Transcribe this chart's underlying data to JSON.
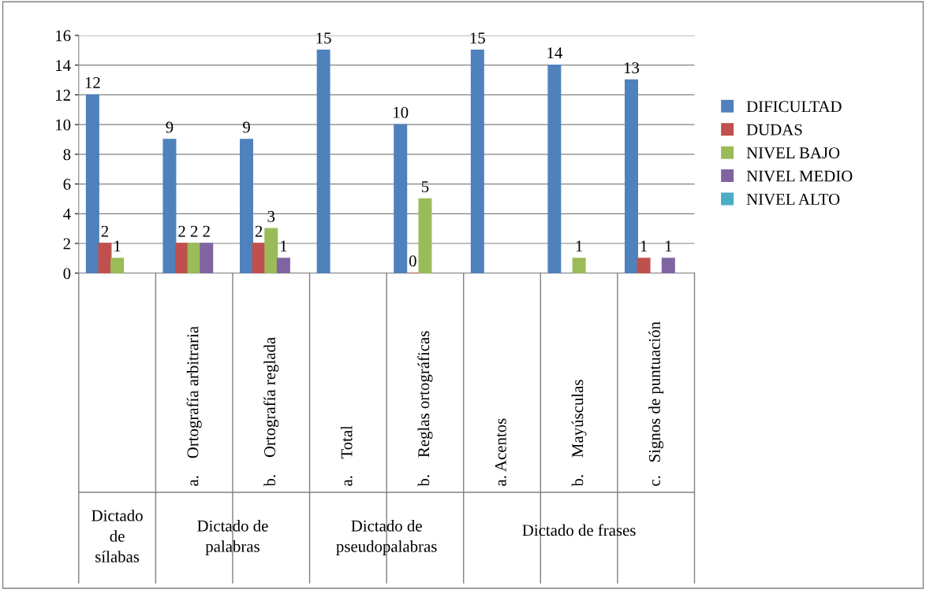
{
  "chart_data": {
    "type": "bar",
    "categories": [
      null,
      "a.    Ortografía arbitraria",
      "b.    Ortografía reglada",
      "a.    Total",
      "b.    Reglas ortográficas",
      "a. Acentos",
      "b.    Mayúsculas",
      "c.   Signos de puntuación"
    ],
    "series": [
      {
        "name": "DIFICULTAD",
        "color": "#4f81bd",
        "values": [
          12,
          9,
          9,
          15,
          10,
          15,
          14,
          13
        ]
      },
      {
        "name": "DUDAS",
        "color": "#c0504d",
        "values": [
          2,
          2,
          2,
          null,
          0,
          null,
          null,
          1
        ]
      },
      {
        "name": "NIVEL BAJO",
        "color": "#9bbb59",
        "values": [
          1,
          2,
          3,
          null,
          5,
          null,
          1,
          null
        ]
      },
      {
        "name": "NIVEL MEDIO",
        "color": "#8064a2",
        "values": [
          null,
          2,
          1,
          null,
          null,
          null,
          null,
          1
        ]
      },
      {
        "name": "NIVEL ALTO",
        "color": "#4bacc6",
        "values": [
          null,
          null,
          null,
          null,
          null,
          null,
          null,
          null
        ]
      }
    ],
    "annotations": [
      "Dictado de sílabas",
      "Dictado de palabras",
      "Dictado de pseudopalabras",
      "Dictado de frases"
    ],
    "ylim": [
      0,
      16
    ],
    "yticks": [
      0,
      2,
      4,
      6,
      8,
      10,
      12,
      14,
      16
    ],
    "grid": "y",
    "legend": "right",
    "data_labels": true
  }
}
